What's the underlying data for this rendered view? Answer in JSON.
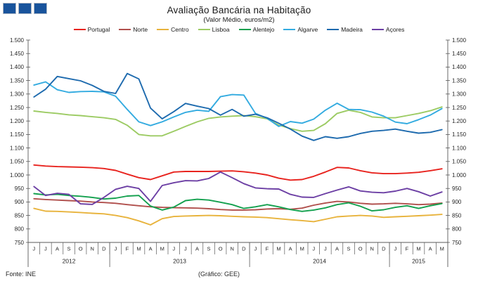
{
  "logo": {
    "square_count": 3,
    "square_color": "#19549C",
    "square_border": "#AEB7C4"
  },
  "footer": {
    "source": "Fonte:  INE",
    "credit": "(Gráfico:  GEE)"
  },
  "chart_data": {
    "type": "line",
    "title": "Avaliação Bancária na Habitação",
    "subtitle": "(Valor Médio, euros/m2)",
    "ylabel": "",
    "xlabel": "",
    "ylim": [
      750,
      1500
    ],
    "ytick_step": 50,
    "grid": false,
    "legend_position": "top",
    "axis_color": "#595959",
    "text_color": "#262626",
    "x_months": [
      "J",
      "J",
      "A",
      "S",
      "O",
      "N",
      "D",
      "J",
      "F",
      "M",
      "A",
      "M",
      "J",
      "J",
      "A",
      "S",
      "O",
      "N",
      "D",
      "J",
      "F",
      "M",
      "A",
      "M",
      "J",
      "J",
      "A",
      "S",
      "O",
      "N",
      "D",
      "J",
      "F",
      "M",
      "A",
      "M"
    ],
    "year_groups": [
      {
        "label": "2012",
        "months": 7
      },
      {
        "label": "2013",
        "months": 12
      },
      {
        "label": "2014",
        "months": 12
      },
      {
        "label": "2015",
        "months": 5
      }
    ],
    "series": [
      {
        "name": "Portugal",
        "key": "portugal",
        "color": "#E8231E",
        "values": [
          1037,
          1033,
          1031,
          1030,
          1029,
          1027,
          1024,
          1017,
          1003,
          990,
          983,
          997,
          1011,
          1013,
          1013,
          1013,
          1014,
          1015,
          1012,
          1007,
          1000,
          988,
          981,
          983,
          995,
          1011,
          1028,
          1026,
          1016,
          1008,
          1005,
          1005,
          1007,
          1010,
          1016,
          1023
        ]
      },
      {
        "name": "Norte",
        "key": "norte",
        "color": "#B04F4C",
        "values": [
          912,
          909,
          907,
          905,
          903,
          900,
          898,
          895,
          890,
          886,
          882,
          880,
          879,
          878,
          877,
          875,
          872,
          870,
          870,
          871,
          874,
          875,
          873,
          877,
          888,
          896,
          902,
          900,
          895,
          892,
          893,
          895,
          893,
          890,
          892,
          896
        ]
      },
      {
        "name": "Centro",
        "key": "centro",
        "color": "#E8B33C",
        "values": [
          876,
          866,
          865,
          863,
          861,
          858,
          856,
          850,
          842,
          830,
          815,
          838,
          846,
          848,
          849,
          850,
          849,
          847,
          845,
          844,
          842,
          838,
          834,
          831,
          827,
          836,
          845,
          848,
          850,
          848,
          843,
          845,
          847,
          849,
          851,
          854
        ]
      },
      {
        "name": "Lisboa",
        "key": "lisboa",
        "color": "#9CCB63",
        "values": [
          1237,
          1232,
          1228,
          1223,
          1220,
          1216,
          1212,
          1206,
          1184,
          1150,
          1145,
          1145,
          1162,
          1180,
          1197,
          1210,
          1215,
          1218,
          1220,
          1216,
          1208,
          1185,
          1172,
          1162,
          1165,
          1190,
          1228,
          1240,
          1232,
          1215,
          1212,
          1212,
          1220,
          1228,
          1238,
          1252
        ]
      },
      {
        "name": "Alentejo",
        "key": "alentejo",
        "color": "#13A04E",
        "values": [
          931,
          926,
          928,
          924,
          921,
          917,
          911,
          914,
          922,
          924,
          885,
          870,
          881,
          905,
          910,
          907,
          899,
          890,
          876,
          882,
          890,
          882,
          872,
          865,
          870,
          878,
          890,
          897,
          884,
          867,
          871,
          880,
          886,
          876,
          886,
          894
        ]
      },
      {
        "name": "Algarve",
        "key": "algarve",
        "color": "#33ABE0",
        "values": [
          1333,
          1345,
          1316,
          1306,
          1309,
          1310,
          1308,
          1292,
          1243,
          1197,
          1183,
          1197,
          1215,
          1232,
          1240,
          1236,
          1290,
          1298,
          1296,
          1228,
          1210,
          1180,
          1198,
          1192,
          1207,
          1240,
          1266,
          1243,
          1242,
          1233,
          1218,
          1196,
          1190,
          1205,
          1222,
          1246
        ]
      },
      {
        "name": "Madeira",
        "key": "madeira",
        "color": "#1D6AAE",
        "values": [
          1289,
          1318,
          1365,
          1357,
          1349,
          1332,
          1310,
          1302,
          1376,
          1356,
          1248,
          1208,
          1235,
          1265,
          1255,
          1246,
          1222,
          1243,
          1218,
          1225,
          1212,
          1192,
          1170,
          1144,
          1128,
          1142,
          1136,
          1142,
          1154,
          1162,
          1165,
          1170,
          1162,
          1155,
          1158,
          1168
        ]
      },
      {
        "name": "Açores",
        "key": "acores",
        "color": "#6C3FA4",
        "values": [
          957,
          924,
          932,
          928,
          893,
          891,
          917,
          947,
          958,
          950,
          902,
          961,
          971,
          979,
          978,
          987,
          1011,
          990,
          968,
          952,
          949,
          948,
          928,
          918,
          917,
          931,
          944,
          956,
          941,
          936,
          934,
          940,
          950,
          938,
          922,
          937
        ]
      }
    ]
  }
}
